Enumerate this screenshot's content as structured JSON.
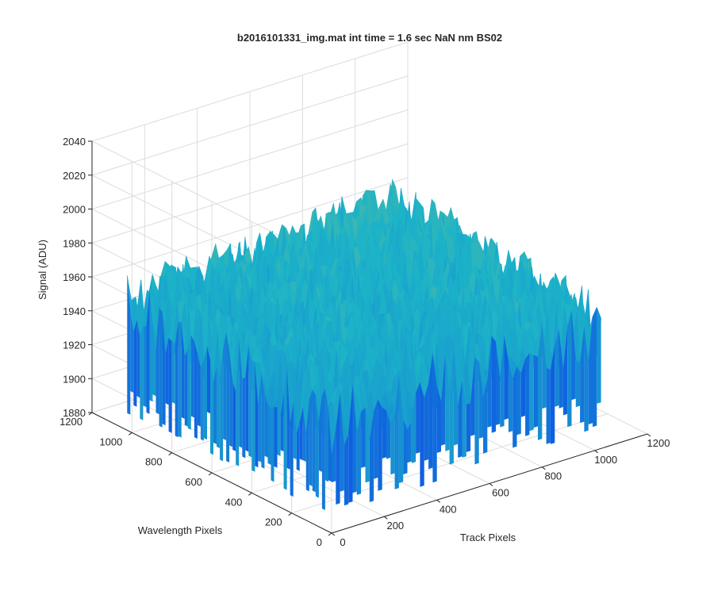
{
  "chart_data": {
    "type": "surface",
    "title": "b2016101331_img.mat int time = 1.6 sec  NaN nm BS02",
    "xlabel": "Track Pixels",
    "ylabel": "Wavelength Pixels",
    "zlabel": "Signal (ADU)",
    "xlim": [
      0,
      1200
    ],
    "ylim": [
      0,
      1200
    ],
    "zlim": [
      1880,
      2040
    ],
    "x_ticks": [
      "0",
      "200",
      "400",
      "600",
      "800",
      "1000",
      "1200"
    ],
    "y_ticks": [
      "0",
      "200",
      "400",
      "600",
      "800",
      "1000",
      "1200"
    ],
    "z_ticks": [
      "1880",
      "1900",
      "1920",
      "1940",
      "1960",
      "1980",
      "2000",
      "2020",
      "2040"
    ],
    "data_extent": {
      "x": [
        0,
        1024
      ],
      "y": [
        0,
        1024
      ]
    },
    "signal_range": [
      1890,
      2030
    ],
    "signal_mean": 1945,
    "grid": true,
    "colormap": "parula",
    "colors": {
      "low": "#0f5fe0",
      "mid": "#1cb3c8",
      "high": "#e6cc3a",
      "axis": "#262626",
      "grid": "#dcdcdc"
    }
  }
}
